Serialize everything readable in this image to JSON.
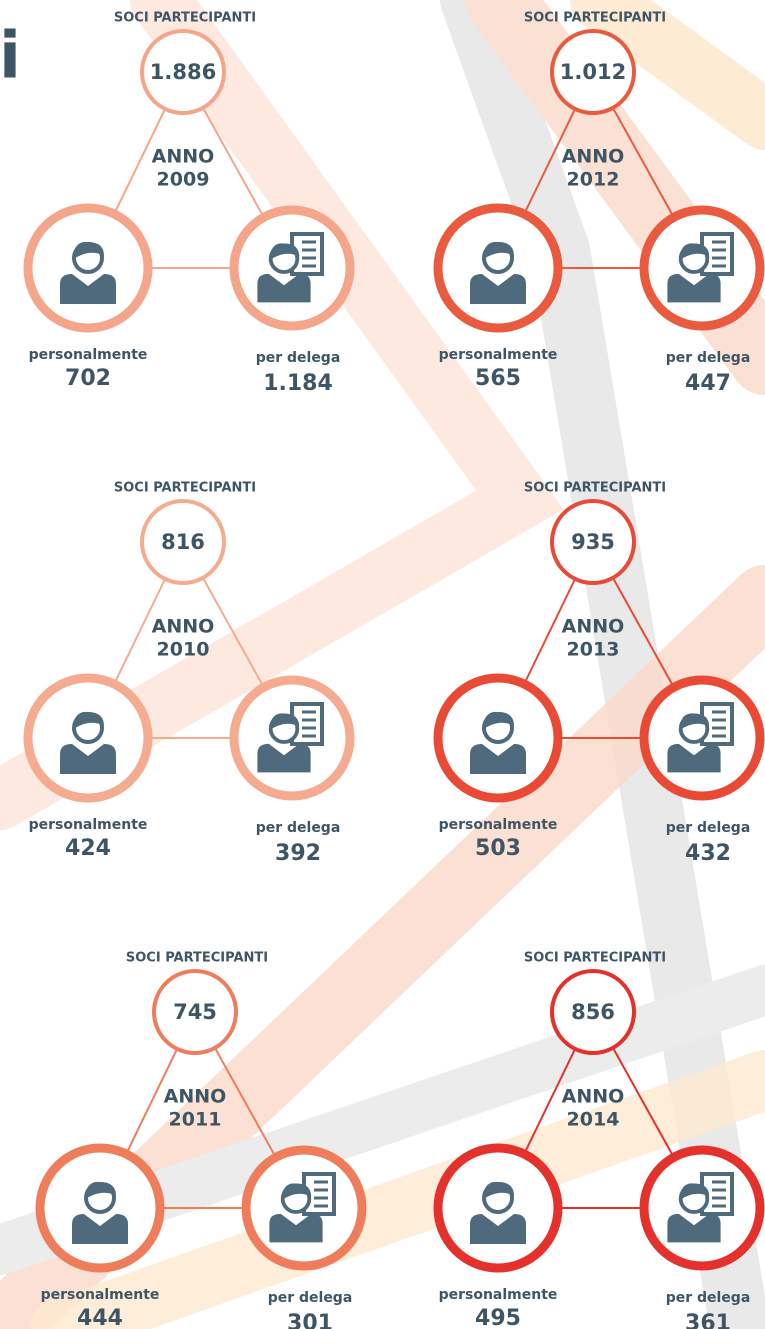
{
  "title_fragment": "i",
  "panels": [
    {
      "heading": "SOCI PARTECIPANTI",
      "total": "1.886",
      "anno": "ANNO",
      "year": "2009",
      "left_label": "personalmente",
      "left_value": "702",
      "right_label": "per delega",
      "right_value": "1.184",
      "color": "#f4a58a"
    },
    {
      "heading": "SOCI PARTECIPANTI",
      "total": "1.012",
      "anno": "ANNO",
      "year": "2012",
      "left_label": "personalmente",
      "left_value": "565",
      "right_label": "per delega",
      "right_value": "447",
      "color": "#ea5a3e"
    },
    {
      "heading": "SOCI PARTECIPANTI",
      "total": "816",
      "anno": "ANNO",
      "year": "2010",
      "left_label": "personalmente",
      "left_value": "424",
      "right_label": "per delega",
      "right_value": "392",
      "color": "#f5ab90"
    },
    {
      "heading": "SOCI PARTECIPANTI",
      "total": "935",
      "anno": "ANNO",
      "year": "2013",
      "left_label": "personalmente",
      "left_value": "503",
      "right_label": "per delega",
      "right_value": "432",
      "color": "#e94a35"
    },
    {
      "heading": "SOCI PARTECIPANTI",
      "total": "745",
      "anno": "ANNO",
      "year": "2011",
      "left_label": "personalmente",
      "left_value": "444",
      "right_label": "per delega",
      "right_value": "301",
      "color": "#ef7d5c"
    },
    {
      "heading": "SOCI PARTECIPANTI",
      "total": "856",
      "anno": "ANNO",
      "year": "2014",
      "left_label": "personalmente",
      "left_value": "495",
      "right_label": "per delega",
      "right_value": "361",
      "color": "#e4312b"
    }
  ]
}
